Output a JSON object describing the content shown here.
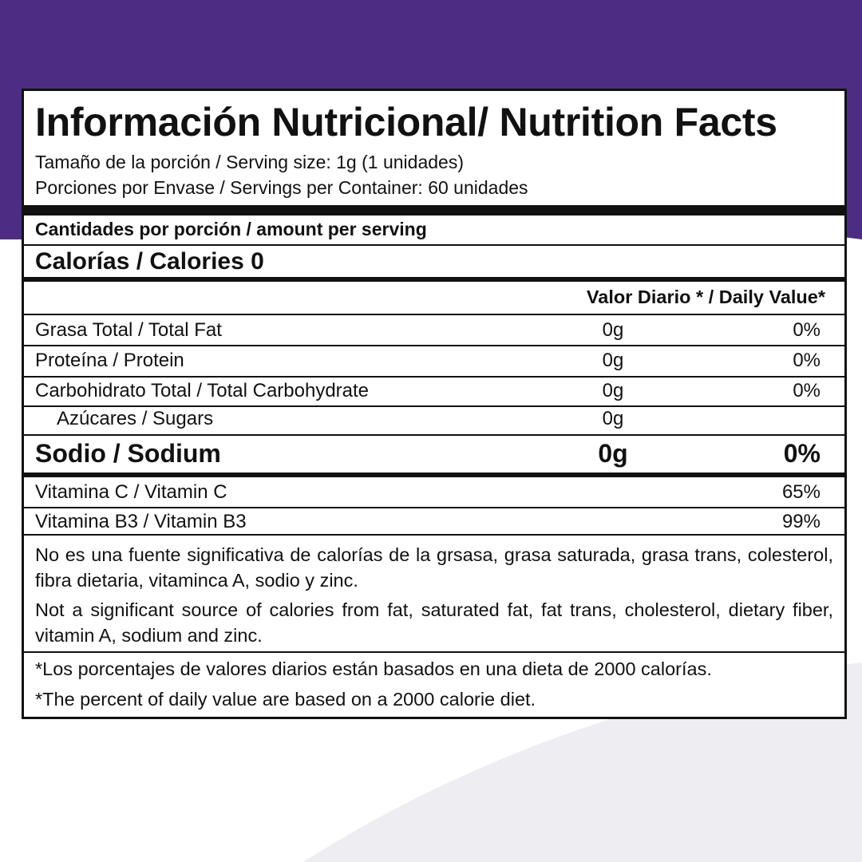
{
  "colors": {
    "brand_purple": "#4d2d84",
    "border": "#111111",
    "swoosh": "#eeedf1"
  },
  "label": {
    "title": "Información Nutricional/ Nutrition Facts",
    "serving_size": "Tamaño de la porción / Serving size: 1g (1 unidades)",
    "servings_per_container": "Porciones por Envase / Servings per Container: 60 unidades",
    "amount_per_serving": "Cantidades por porción / amount per serving",
    "calories": "Calorías / Calories 0",
    "daily_value_header": "Valor Diario * / Daily Value*",
    "nutrients": [
      {
        "name": "Grasa Total / Total Fat",
        "amount": "0g",
        "daily_value": "0%"
      },
      {
        "name": "Proteína / Protein",
        "amount": "0g",
        "daily_value": "0%"
      },
      {
        "name": "Carbohidrato Total / Total Carbohydrate",
        "amount": "0g",
        "daily_value": "0%"
      },
      {
        "name": "Azúcares / Sugars",
        "amount": "0g",
        "daily_value": ""
      },
      {
        "name": "Sodio / Sodium",
        "amount": "0g",
        "daily_value": "0%"
      }
    ],
    "vitamins": [
      {
        "name": "Vitamina C / Vitamin C",
        "daily_value": "65%"
      },
      {
        "name": "Vitamina B3 / Vitamin B3",
        "daily_value": "99%"
      }
    ],
    "note_es": "No es una fuente significativa de calorías de la grsasa, grasa saturada, grasa trans, colesterol, fibra dietaria, vitaminca A, sodio y zinc.",
    "note_en": "Not a significant source of calories from fat, saturated fat, fat trans, cholesterol, dietary fiber, vitamin A, sodium and zinc.",
    "footnote_es": "*Los porcentajes de valores diarios están basados en una dieta de 2000 calorías.",
    "footnote_en": "*The percent of daily value are based on a 2000 calorie diet."
  }
}
